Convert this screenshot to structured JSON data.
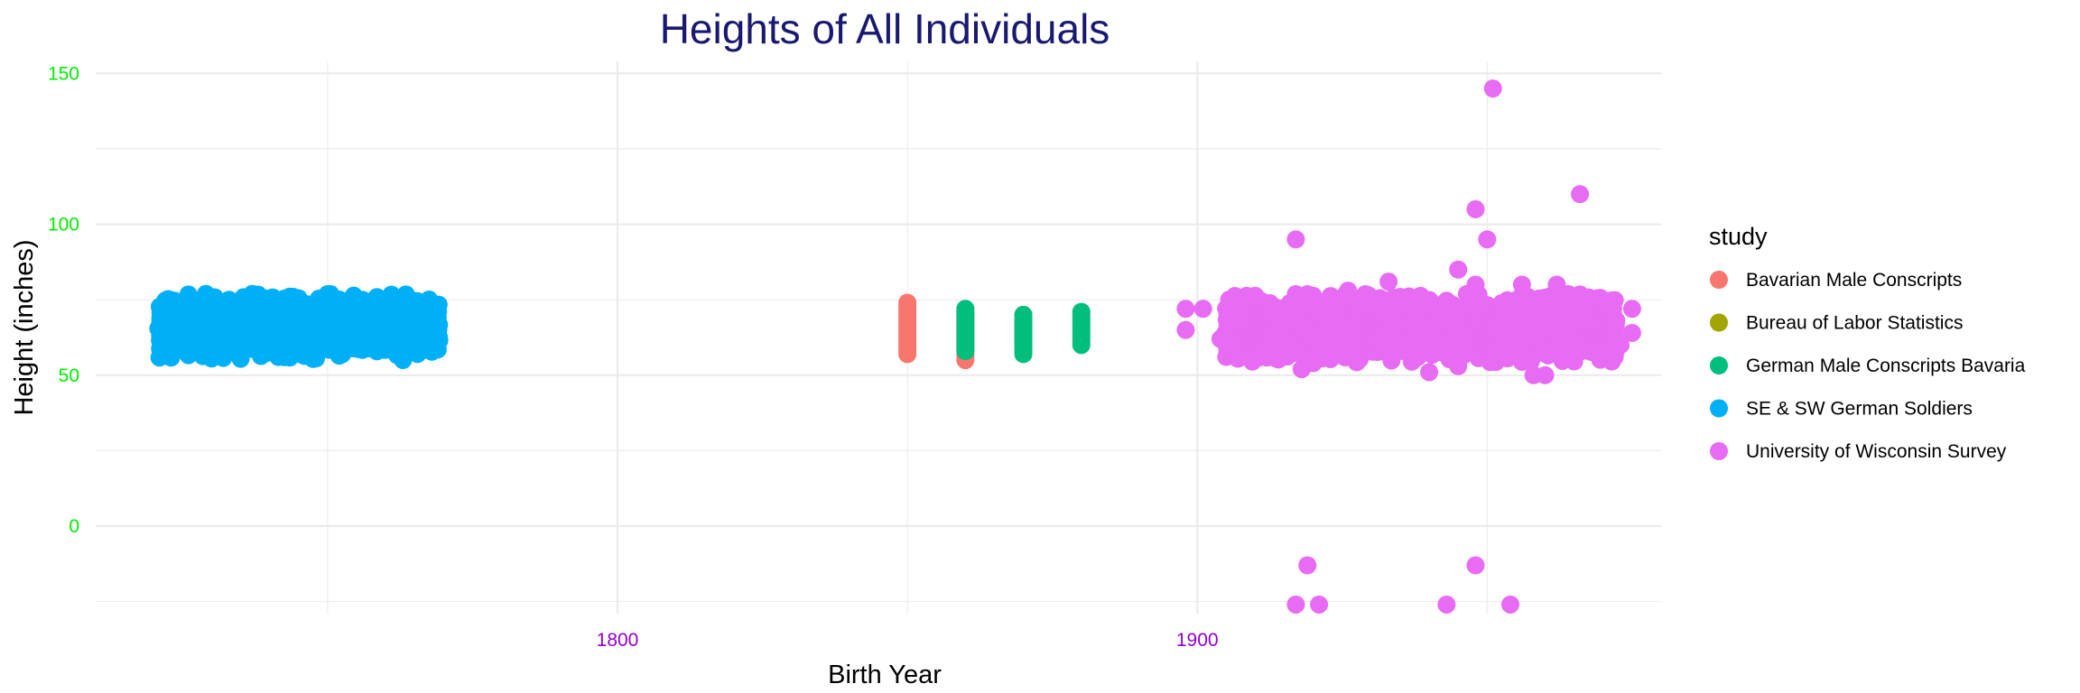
{
  "chart_data": {
    "type": "scatter",
    "title": "Heights of All Individuals",
    "xlabel": "Birth Year",
    "ylabel": "Height (inches)",
    "xlim": [
      1710,
      1980
    ],
    "ylim": [
      -29,
      154
    ],
    "x_ticks": [
      1800,
      1900
    ],
    "x_tick_labels": [
      "1800",
      "1900"
    ],
    "y_ticks": [
      0,
      50,
      100,
      150
    ],
    "y_tick_labels": [
      "0",
      "50",
      "100",
      "150"
    ],
    "grid": true,
    "legend_position": "right",
    "legend_title": "study",
    "colors": {
      "title": "#191970",
      "y_tick": "#00ee00",
      "x_tick": "#9400d3",
      "grid": "#ebebeb"
    },
    "series": [
      {
        "name": "Bavarian Male Conscripts",
        "color": "#F8766D",
        "groups": [
          {
            "x": 1850,
            "y_min": 57,
            "y_max": 74
          },
          {
            "x": 1860,
            "y_min": 56,
            "y_max": 71
          },
          {
            "x": 1870,
            "y_min": 59,
            "y_max": 70
          }
        ],
        "points": [
          {
            "x": 1860,
            "y": 55
          }
        ]
      },
      {
        "name": "Bureau of Labor Statistics",
        "color": "#A3A500",
        "groups": [],
        "points": []
      },
      {
        "name": "German Male Conscripts Bavaria",
        "color": "#00BF7D",
        "groups": [
          {
            "x": 1860,
            "y_min": 58,
            "y_max": 72
          },
          {
            "x": 1870,
            "y_min": 57,
            "y_max": 70
          },
          {
            "x": 1880,
            "y_min": 60,
            "y_max": 71
          }
        ],
        "points": []
      },
      {
        "name": "SE & SW German Soldiers",
        "color": "#00B0F6",
        "band": {
          "x_min": 1721,
          "x_max": 1769,
          "y_min": 59,
          "y_max": 73
        },
        "points": [
          {
            "x": 1723,
            "y": 57
          },
          {
            "x": 1722,
            "y": 74
          },
          {
            "x": 1733,
            "y": 75
          },
          {
            "x": 1744,
            "y": 76
          },
          {
            "x": 1756,
            "y": 75
          },
          {
            "x": 1766,
            "y": 58
          },
          {
            "x": 1748,
            "y": 58
          },
          {
            "x": 1735,
            "y": 57
          }
        ]
      },
      {
        "name": "University of Wisconsin Survey",
        "color": "#E76BF3",
        "band": {
          "x_min": 1905,
          "x_max": 1972,
          "y_min": 58,
          "y_max": 73
        },
        "points": [
          {
            "x": 1898,
            "y": 72
          },
          {
            "x": 1898,
            "y": 65
          },
          {
            "x": 1901,
            "y": 72
          },
          {
            "x": 1904,
            "y": 62
          },
          {
            "x": 1917,
            "y": 95
          },
          {
            "x": 1918,
            "y": 52
          },
          {
            "x": 1920,
            "y": 54
          },
          {
            "x": 1926,
            "y": 78
          },
          {
            "x": 1933,
            "y": 81
          },
          {
            "x": 1940,
            "y": 51
          },
          {
            "x": 1945,
            "y": 53
          },
          {
            "x": 1945,
            "y": 85
          },
          {
            "x": 1948,
            "y": 80
          },
          {
            "x": 1951,
            "y": 145
          },
          {
            "x": 1948,
            "y": 105
          },
          {
            "x": 1950,
            "y": 95
          },
          {
            "x": 1956,
            "y": 80
          },
          {
            "x": 1958,
            "y": 50
          },
          {
            "x": 1960,
            "y": 50
          },
          {
            "x": 1962,
            "y": 80
          },
          {
            "x": 1966,
            "y": 110
          },
          {
            "x": 1970,
            "y": 57
          },
          {
            "x": 1973,
            "y": 60
          },
          {
            "x": 1975,
            "y": 72
          },
          {
            "x": 1975,
            "y": 64
          },
          {
            "x": 1919,
            "y": -13
          },
          {
            "x": 1948,
            "y": -13
          },
          {
            "x": 1917,
            "y": -26
          },
          {
            "x": 1921,
            "y": -26
          },
          {
            "x": 1943,
            "y": -26
          },
          {
            "x": 1954,
            "y": -26
          }
        ]
      }
    ]
  }
}
